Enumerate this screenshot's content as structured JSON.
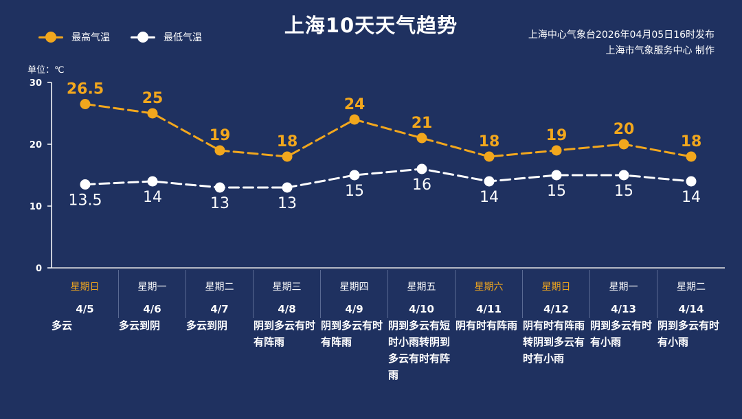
{
  "title": "上海10天天气趋势",
  "issuer": {
    "line1": "上海中心气象台2026年04月05日16时发布",
    "line2": "上海市气象服务中心  制作"
  },
  "unit_label": "单位：℃",
  "colors": {
    "background": "#1f3160",
    "high": "#f2a71d",
    "low": "#ffffff",
    "weekend": "#f2a71d"
  },
  "legend": {
    "high": "最高气温",
    "low": "最低气温"
  },
  "chart_data": {
    "type": "line",
    "categories": [
      "4/5",
      "4/6",
      "4/7",
      "4/8",
      "4/9",
      "4/10",
      "4/11",
      "4/12",
      "4/13",
      "4/14"
    ],
    "series": [
      {
        "name": "最高气温",
        "values": [
          26.5,
          25,
          19,
          18,
          24,
          21,
          18,
          19,
          20,
          18
        ],
        "labels": [
          "26.5",
          "25",
          "19",
          "18",
          "24",
          "21",
          "18",
          "19",
          "20",
          "18"
        ]
      },
      {
        "name": "最低气温",
        "values": [
          13.5,
          14,
          13,
          13,
          15,
          16,
          14,
          15,
          15,
          14
        ],
        "labels": [
          "13.5",
          "14",
          "13",
          "13",
          "15",
          "16",
          "14",
          "15",
          "15",
          "14"
        ]
      }
    ],
    "ylim": [
      0,
      30
    ],
    "yticks": [
      0,
      10,
      20,
      30
    ],
    "ytick_labels": [
      "0",
      "10",
      "20",
      "30"
    ],
    "line_style": "dashed",
    "legend_position": "top-left"
  },
  "days": [
    {
      "weekday": "星期日",
      "date": "4/5",
      "weekend": true,
      "desc": "多云"
    },
    {
      "weekday": "星期一",
      "date": "4/6",
      "weekend": false,
      "desc": "多云到阴"
    },
    {
      "weekday": "星期二",
      "date": "4/7",
      "weekend": false,
      "desc": "多云到阴"
    },
    {
      "weekday": "星期三",
      "date": "4/8",
      "weekend": false,
      "desc": "阴到多云有时有阵雨"
    },
    {
      "weekday": "星期四",
      "date": "4/9",
      "weekend": false,
      "desc": "阴到多云有时有阵雨"
    },
    {
      "weekday": "星期五",
      "date": "4/10",
      "weekend": false,
      "desc": "阴到多云有短时小雨转阴到多云有时有阵雨"
    },
    {
      "weekday": "星期六",
      "date": "4/11",
      "weekend": true,
      "desc": "阴有时有阵雨"
    },
    {
      "weekday": "星期日",
      "date": "4/12",
      "weekend": true,
      "desc": "阴有时有阵雨转阴到多云有时有小雨"
    },
    {
      "weekday": "星期一",
      "date": "4/13",
      "weekend": false,
      "desc": "阴到多云有时有小雨"
    },
    {
      "weekday": "星期二",
      "date": "4/14",
      "weekend": false,
      "desc": "阴到多云有时有小雨"
    }
  ]
}
